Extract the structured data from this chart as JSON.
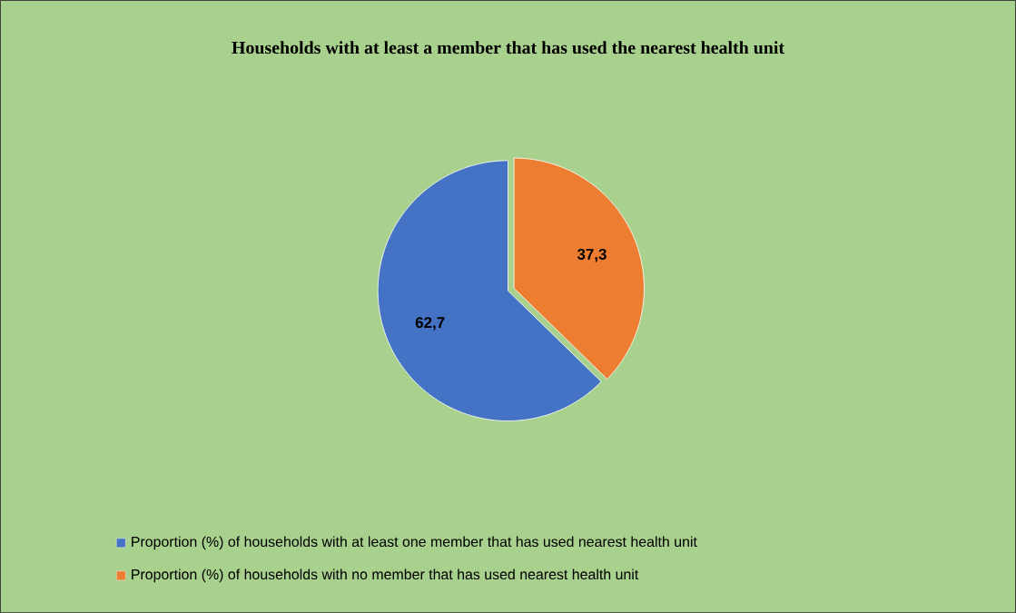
{
  "chart_data": {
    "type": "pie",
    "title": "Households with at least a member that has used the nearest health unit",
    "categories": [
      "Proportion (%) of households with at least one member that has used nearest health unit",
      "Proportion (%) of households with no member that has used nearest health unit"
    ],
    "values": [
      62.7,
      37.3
    ],
    "colors": [
      "#4472c4",
      "#ed7d31"
    ],
    "value_labels": [
      "62,7",
      "37,3"
    ],
    "legend": "bottom"
  }
}
